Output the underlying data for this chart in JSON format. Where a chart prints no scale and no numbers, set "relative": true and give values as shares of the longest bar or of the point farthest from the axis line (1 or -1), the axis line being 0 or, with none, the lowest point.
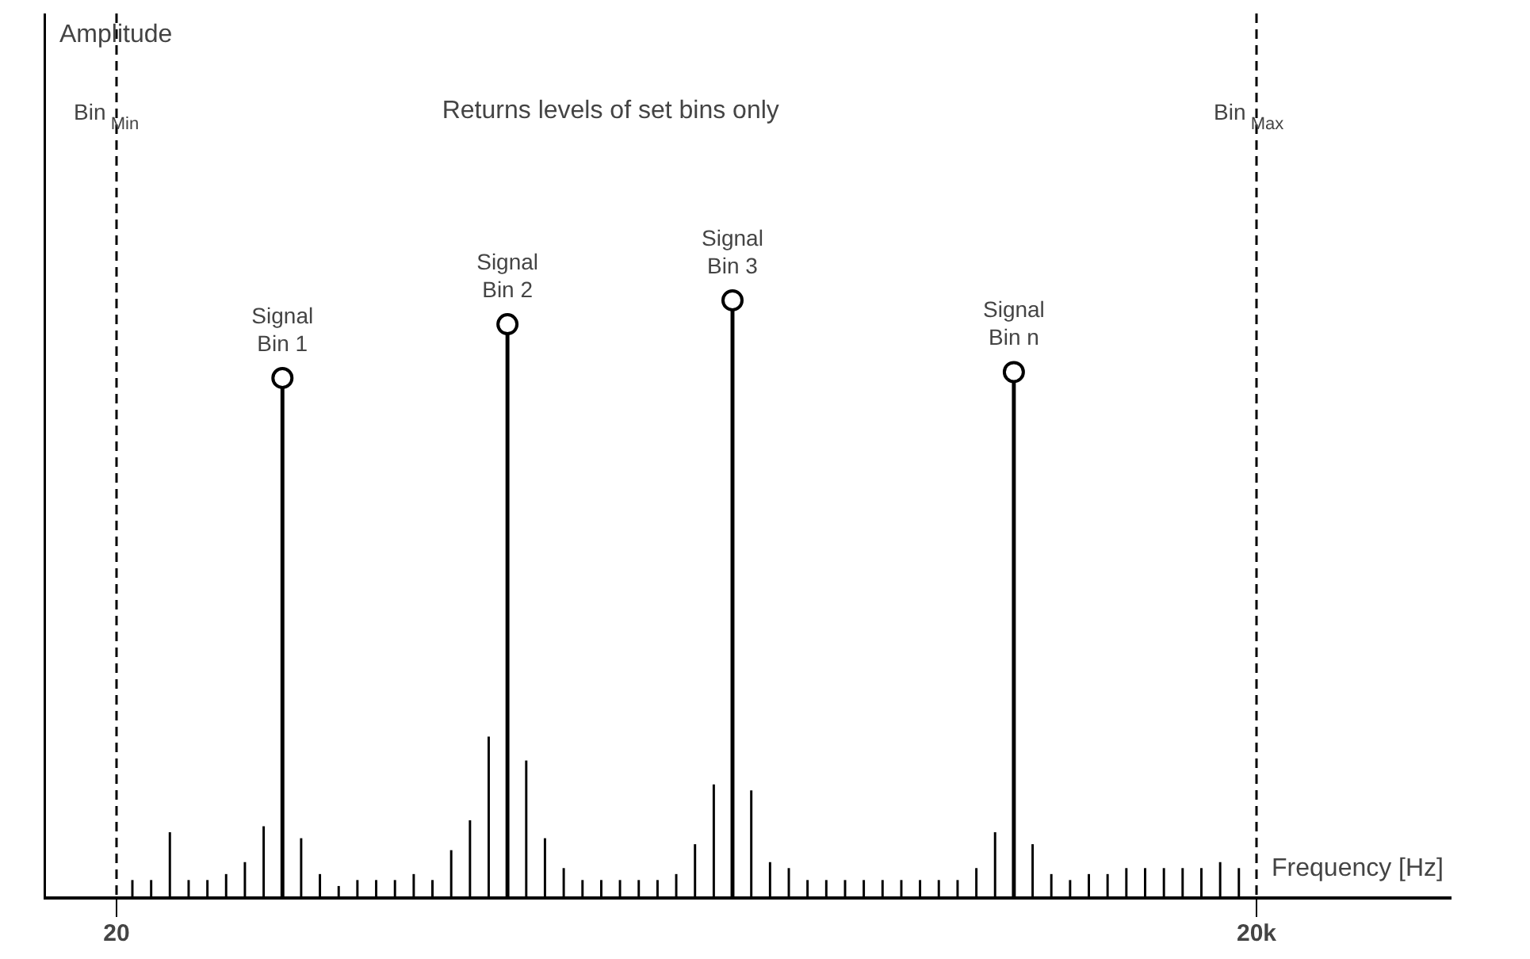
{
  "chart_data": {
    "type": "lollipop",
    "relative": true,
    "title": "Returns levels of set bins only",
    "xlabel": "Frequency [Hz]",
    "xlim": [
      -1258,
      23418
    ],
    "xticks": [
      {
        "value": 20,
        "label": "20"
      },
      {
        "value": 20000,
        "label": "20k"
      }
    ],
    "x": [
      298,
      627,
      955,
      1284,
      1613,
      1941,
      2270,
      2599,
      2928,
      3256,
      3585,
      3914,
      4242,
      4571,
      4900,
      5229,
      5557,
      5886,
      6215,
      6543,
      6872,
      7201,
      7529,
      7858,
      8187,
      8516,
      8844,
      9173,
      9502,
      9830,
      10159,
      10488,
      10816,
      11145,
      11474,
      11803,
      12131,
      12460,
      12789,
      13117,
      13446,
      13775,
      14103,
      14432,
      14761,
      15090,
      15418,
      15747,
      16076,
      16404,
      16733,
      17062,
      17390,
      17719,
      18048,
      18377,
      18705,
      19034,
      19363,
      19691
    ],
    "series": [
      {
        "type": "bar",
        "color": "#000000",
        "values": [
          0.03,
          0.03,
          0.11,
          0.03,
          0.03,
          0.04,
          0.06,
          0.12,
          null,
          0.1,
          0.04,
          0.02,
          0.03,
          0.03,
          0.03,
          0.04,
          0.03,
          0.08,
          0.13,
          0.27,
          null,
          0.23,
          0.1,
          0.05,
          0.03,
          0.03,
          0.03,
          0.03,
          0.03,
          0.04,
          0.09,
          0.19,
          null,
          0.18,
          0.06,
          0.05,
          0.03,
          0.03,
          0.03,
          0.03,
          0.03,
          0.03,
          0.03,
          0.03,
          0.03,
          0.05,
          0.11,
          null,
          0.09,
          0.04,
          0.03,
          0.04,
          0.04,
          0.05,
          0.05,
          0.05,
          0.05,
          0.05,
          0.06,
          0.05
        ]
      },
      {
        "color": "#000000",
        "marker": "circle",
        "values": [
          null,
          null,
          null,
          null,
          null,
          null,
          null,
          null,
          0.87,
          null,
          null,
          null,
          null,
          null,
          null,
          null,
          null,
          null,
          null,
          null,
          0.96,
          null,
          null,
          null,
          null,
          null,
          null,
          null,
          null,
          null,
          null,
          null,
          1,
          null,
          null,
          null,
          null,
          null,
          null,
          null,
          null,
          null,
          null,
          null,
          null,
          null,
          null,
          0.88,
          null,
          null,
          null,
          null,
          null,
          null,
          null,
          null,
          null,
          null,
          null,
          null
        ]
      }
    ],
    "ref_lines": [
      {
        "axis": "x",
        "value": 20,
        "label": "Bin$_{Min}$",
        "line_style": "dashed"
      },
      {
        "axis": "x",
        "value": 20000,
        "label": "Bin$_{Max}$",
        "line_style": "dashed"
      }
    ],
    "annotations": [
      "Amplitude",
      {
        "text": "Signal\nBin 1",
        "x": 2928,
        "y": 0.87
      },
      {
        "text": "Signal\nBin 2",
        "x": 6872,
        "y": 0.96
      },
      {
        "text": "Signal\nBin 3",
        "x": 10816,
        "y": 1
      },
      {
        "text": "Signal\nBin n",
        "x": 15747,
        "y": 0.88
      }
    ]
  }
}
